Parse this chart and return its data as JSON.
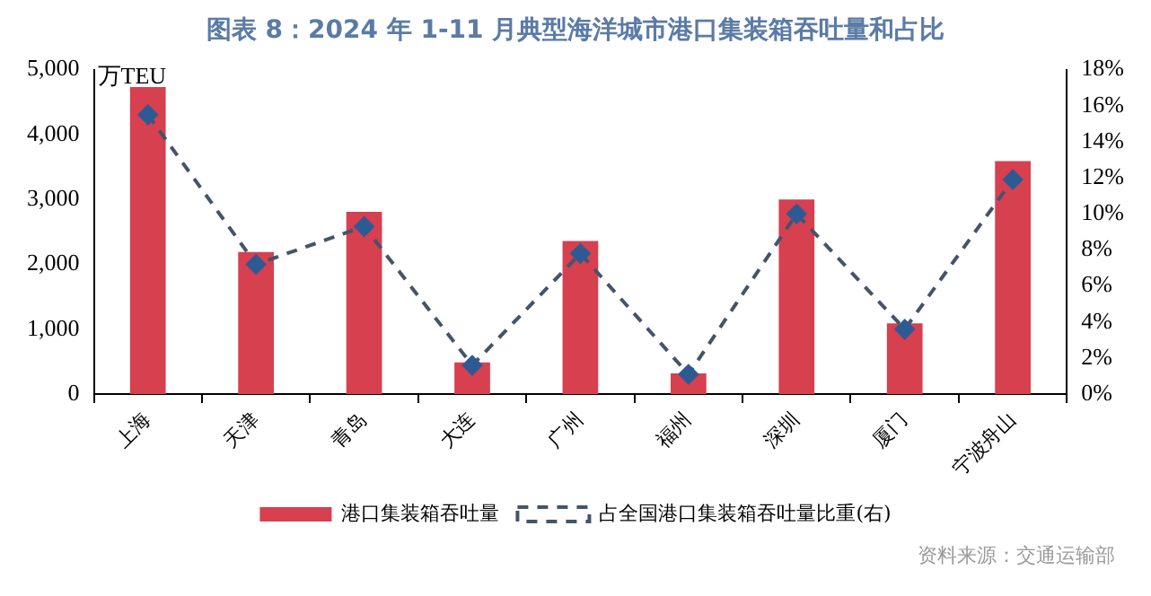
{
  "chart_data": {
    "type": "bar",
    "title": "图表 8：2024 年 1-11 月典型海洋城市港口集装箱吞吐量和占比",
    "ylabel": "万TEU",
    "annotations": [
      "资料来源：交通运输部"
    ],
    "categories": [
      "上海",
      "天津",
      "青岛",
      "大连",
      "广州",
      "福州",
      "深圳",
      "厦门",
      "宁波舟山"
    ],
    "series": [
      {
        "name": "港口集装箱吞吐量",
        "color": "#d6404f",
        "values": [
          4730,
          2190,
          2810,
          490,
          2360,
          320,
          3000,
          1090,
          3590
        ]
      },
      {
        "name": "占全国港口集装箱吞吐量比重(右)",
        "type": "line",
        "axis": "y2",
        "color": "#44546a",
        "marker": "diamond",
        "line_style": "dashed",
        "values": [
          15.5,
          7.2,
          9.3,
          1.6,
          7.8,
          1.1,
          10.0,
          3.6,
          11.9
        ]
      }
    ],
    "ylim": [
      0,
      5000
    ],
    "yticks": [
      {
        "value": 0,
        "label": "0"
      },
      {
        "value": 1000,
        "label": "1,000"
      },
      {
        "value": 2000,
        "label": "2,000"
      },
      {
        "value": 3000,
        "label": "3,000"
      },
      {
        "value": 4000,
        "label": "4,000"
      },
      {
        "value": 5000,
        "label": "5,000"
      }
    ],
    "y2lim": [
      0,
      18
    ],
    "y2ticks": [
      {
        "value": 0,
        "label": "0%"
      },
      {
        "value": 2,
        "label": "2%"
      },
      {
        "value": 4,
        "label": "4%"
      },
      {
        "value": 6,
        "label": "6%"
      },
      {
        "value": 8,
        "label": "8%"
      },
      {
        "value": 10,
        "label": "10%"
      },
      {
        "value": 12,
        "label": "12%"
      },
      {
        "value": 14,
        "label": "14%"
      },
      {
        "value": 16,
        "label": "16%"
      },
      {
        "value": 18,
        "label": "18%"
      }
    ],
    "grid": false,
    "legend": "bottom"
  }
}
